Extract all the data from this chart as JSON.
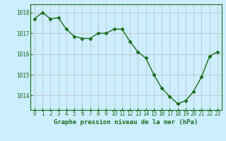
{
  "x": [
    0,
    1,
    2,
    3,
    4,
    5,
    6,
    7,
    8,
    9,
    10,
    11,
    12,
    13,
    14,
    15,
    16,
    17,
    18,
    19,
    20,
    21,
    22,
    23
  ],
  "y": [
    1017.7,
    1018.0,
    1017.7,
    1017.75,
    1017.2,
    1016.85,
    1016.75,
    1016.75,
    1017.0,
    1017.0,
    1017.2,
    1017.2,
    1016.6,
    1016.1,
    1015.8,
    1015.0,
    1014.35,
    1013.95,
    1013.6,
    1013.75,
    1014.2,
    1014.9,
    1015.9,
    1016.1
  ],
  "line_color": "#1a6b1a",
  "marker": "D",
  "marker_size": 2.5,
  "bg_color": "#cceeff",
  "grid_color": "#bbbbbb",
  "title": "Graphe pression niveau de la mer (hPa)",
  "ylim": [
    1013.3,
    1018.4
  ],
  "xlim": [
    -0.5,
    23.5
  ],
  "yticks": [
    1014,
    1015,
    1016,
    1017,
    1018
  ],
  "xticks": [
    0,
    1,
    2,
    3,
    4,
    5,
    6,
    7,
    8,
    9,
    10,
    11,
    12,
    13,
    14,
    15,
    16,
    17,
    18,
    19,
    20,
    21,
    22,
    23
  ],
  "tick_color": "#1a6b1a",
  "tick_fontsize": 5.5,
  "title_fontsize": 6.5,
  "line_width": 1.0
}
